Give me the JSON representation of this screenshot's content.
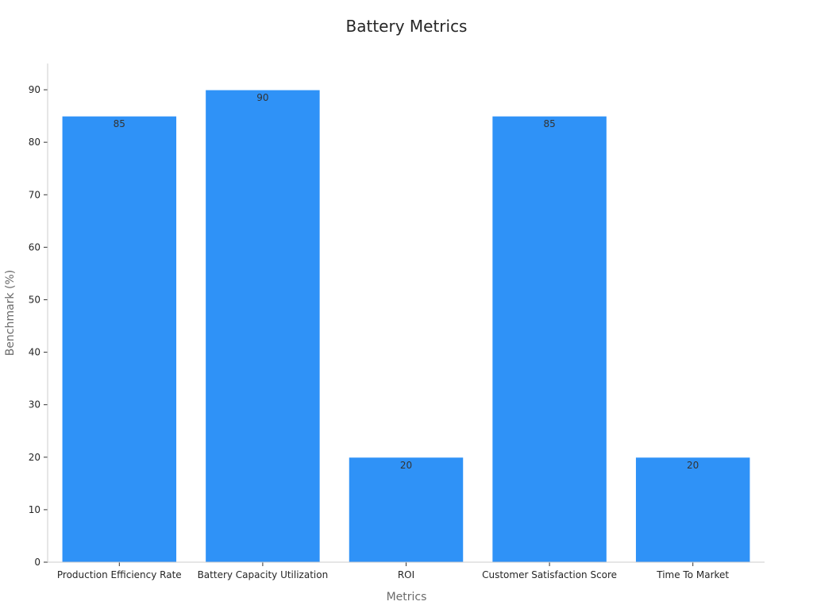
{
  "chart_data": {
    "type": "bar",
    "title": "Battery Metrics",
    "xlabel": "Metrics",
    "ylabel": "Benchmark (%)",
    "categories": [
      "Production Efficiency Rate",
      "Battery Capacity Utilization",
      "ROI",
      "Customer Satisfaction Score",
      "Time To Market"
    ],
    "values": [
      85,
      90,
      20,
      85,
      20
    ],
    "ylim": [
      0,
      95
    ],
    "yticks": [
      0,
      10,
      20,
      30,
      40,
      50,
      60,
      70,
      80,
      90
    ],
    "data_labels": true,
    "grid": false,
    "legend": "none",
    "bar_color": "#2F92F7"
  }
}
